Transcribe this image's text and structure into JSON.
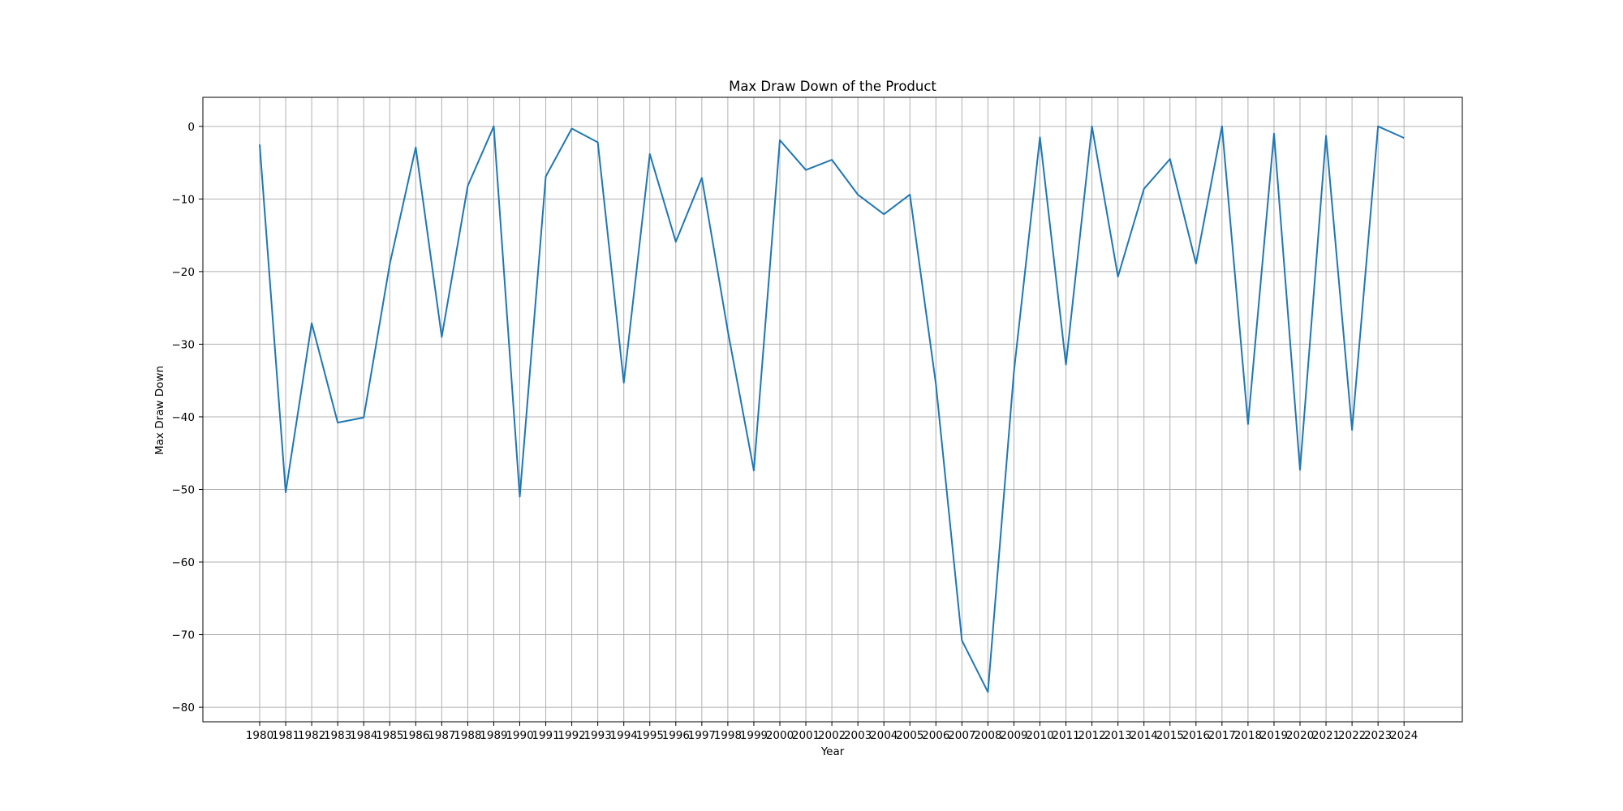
{
  "chart_data": {
    "type": "line",
    "title": "Max Draw Down of the Product",
    "xlabel": "Year",
    "ylabel": "Max Draw Down",
    "grid": true,
    "line_color": "#1f77b4",
    "x": [
      "1980",
      "1981",
      "1982",
      "1983",
      "1984",
      "1985",
      "1986",
      "1987",
      "1988",
      "1989",
      "1990",
      "1991",
      "1992",
      "1993",
      "1994",
      "1995",
      "1996",
      "1997",
      "1998",
      "1999",
      "2000",
      "2001",
      "2002",
      "2003",
      "2004",
      "2005",
      "2006",
      "2007",
      "2008",
      "2009",
      "2010",
      "2011",
      "2012",
      "2013",
      "2014",
      "2015",
      "2016",
      "2017",
      "2018",
      "2019",
      "2020",
      "2021",
      "2022",
      "2023",
      "2024"
    ],
    "series": [
      {
        "values": [
          -2.5,
          -50.4,
          -27.1,
          -40.8,
          -40.1,
          -19.0,
          -2.9,
          -29.0,
          -8.2,
          0.0,
          -51.0,
          -6.9,
          -0.3,
          -2.2,
          -35.3,
          -3.8,
          -15.9,
          -7.1,
          -28.2,
          -47.4,
          -1.9,
          -6.0,
          -4.6,
          -9.4,
          -12.1,
          -9.4,
          -35.5,
          -70.8,
          -77.9,
          -33.8,
          -1.5,
          -32.8,
          0.0,
          -20.7,
          -8.6,
          -4.5,
          -18.9,
          0.0,
          -41.0,
          -1.0,
          -47.3,
          -1.3,
          -41.8,
          0.0,
          -1.6
        ]
      }
    ],
    "yticks": [
      0,
      -10,
      -20,
      -30,
      -40,
      -50,
      -60,
      -70,
      -80
    ],
    "ytick_labels": [
      "0",
      "−10",
      "−20",
      "−30",
      "−40",
      "−50",
      "−60",
      "−70",
      "−80"
    ],
    "ylim": [
      -82,
      4
    ]
  }
}
